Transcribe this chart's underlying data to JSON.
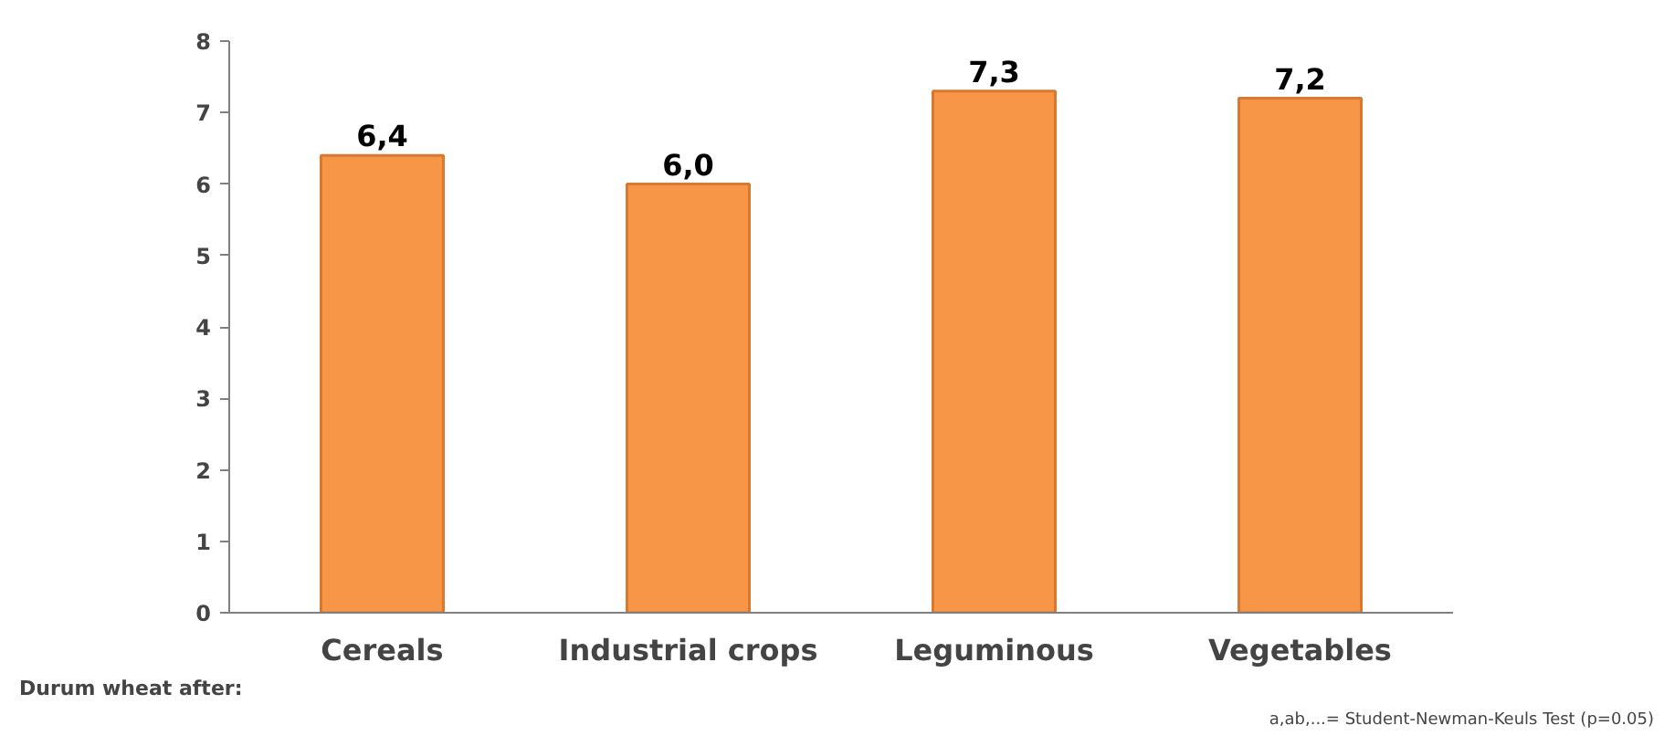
{
  "chart_data": {
    "type": "bar",
    "xlabel": "Durum wheat after:",
    "categories": [
      "Cereals",
      "Industrial crops",
      "Leguminous",
      "Vegetables"
    ],
    "values": [
      6.4,
      6.0,
      7.3,
      7.2
    ],
    "color": "#f79646",
    "value_labels": [
      "6,4",
      "6,0",
      "7,3",
      "7,2"
    ],
    "ylim": [
      0,
      8
    ],
    "yticks": [
      0,
      1,
      2,
      3,
      4,
      5,
      6,
      7,
      8
    ],
    "grid": false,
    "annotations": [
      "a,ab,...= Student-Newman-Keuls Test (p=0.05)"
    ]
  }
}
